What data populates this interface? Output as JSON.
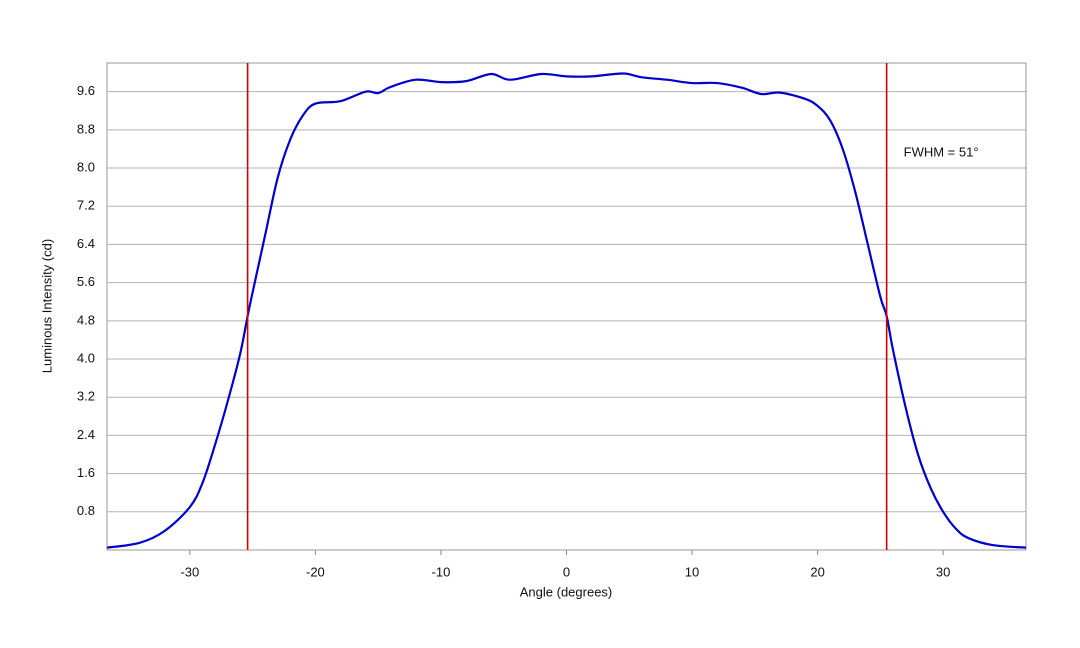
{
  "chart_data": {
    "type": "line",
    "x_label": "Angle (degrees)",
    "y_label": "Luminous Intensity (cd)",
    "annotation": "FWHM = 51°",
    "xlim": [
      -36.6,
      36.6
    ],
    "ylim": [
      0,
      10.2
    ],
    "xticks": [
      -30,
      -20,
      -10,
      0,
      10,
      20,
      30
    ],
    "yticks": [
      0.8,
      1.6,
      2.4,
      3.2,
      {
        "value": 4,
        "label": "4.0"
      },
      4.8,
      5.6,
      6.4,
      7.2,
      {
        "value": 8,
        "label": "8.0"
      },
      8.8,
      9.6
    ],
    "grid": true,
    "vlines": [
      -25.4,
      25.5
    ],
    "vline_color": "#cc0000",
    "x": [
      -36.6,
      -34,
      -32,
      -30,
      -29,
      -28,
      -27,
      -26,
      -25.4,
      -25,
      -24,
      -23,
      -22,
      -21,
      -20,
      -18,
      -16,
      -15,
      -14,
      -12,
      -10,
      -8,
      -6,
      -4.5,
      -2,
      0,
      2,
      4.5,
      6,
      8,
      10,
      12,
      14,
      15.5,
      17,
      19,
      20,
      21,
      22,
      23,
      24,
      25,
      25.5,
      26,
      27,
      28,
      29,
      30,
      31,
      32,
      34,
      36.6
    ],
    "series": [
      {
        "name": "Luminous Intensity",
        "color": "#0000cc",
        "values": [
          0.05,
          0.15,
          0.4,
          0.9,
          1.4,
          2.2,
          3.1,
          4.1,
          4.9,
          5.4,
          6.6,
          7.8,
          8.6,
          9.1,
          9.35,
          9.4,
          9.6,
          9.57,
          9.7,
          9.85,
          9.8,
          9.82,
          9.97,
          9.85,
          9.97,
          9.92,
          9.92,
          9.98,
          9.9,
          9.85,
          9.78,
          9.78,
          9.68,
          9.55,
          9.58,
          9.45,
          9.3,
          9.0,
          8.4,
          7.5,
          6.4,
          5.3,
          4.9,
          4.2,
          3.0,
          2.0,
          1.3,
          0.8,
          0.45,
          0.25,
          0.1,
          0.05
        ]
      }
    ]
  }
}
